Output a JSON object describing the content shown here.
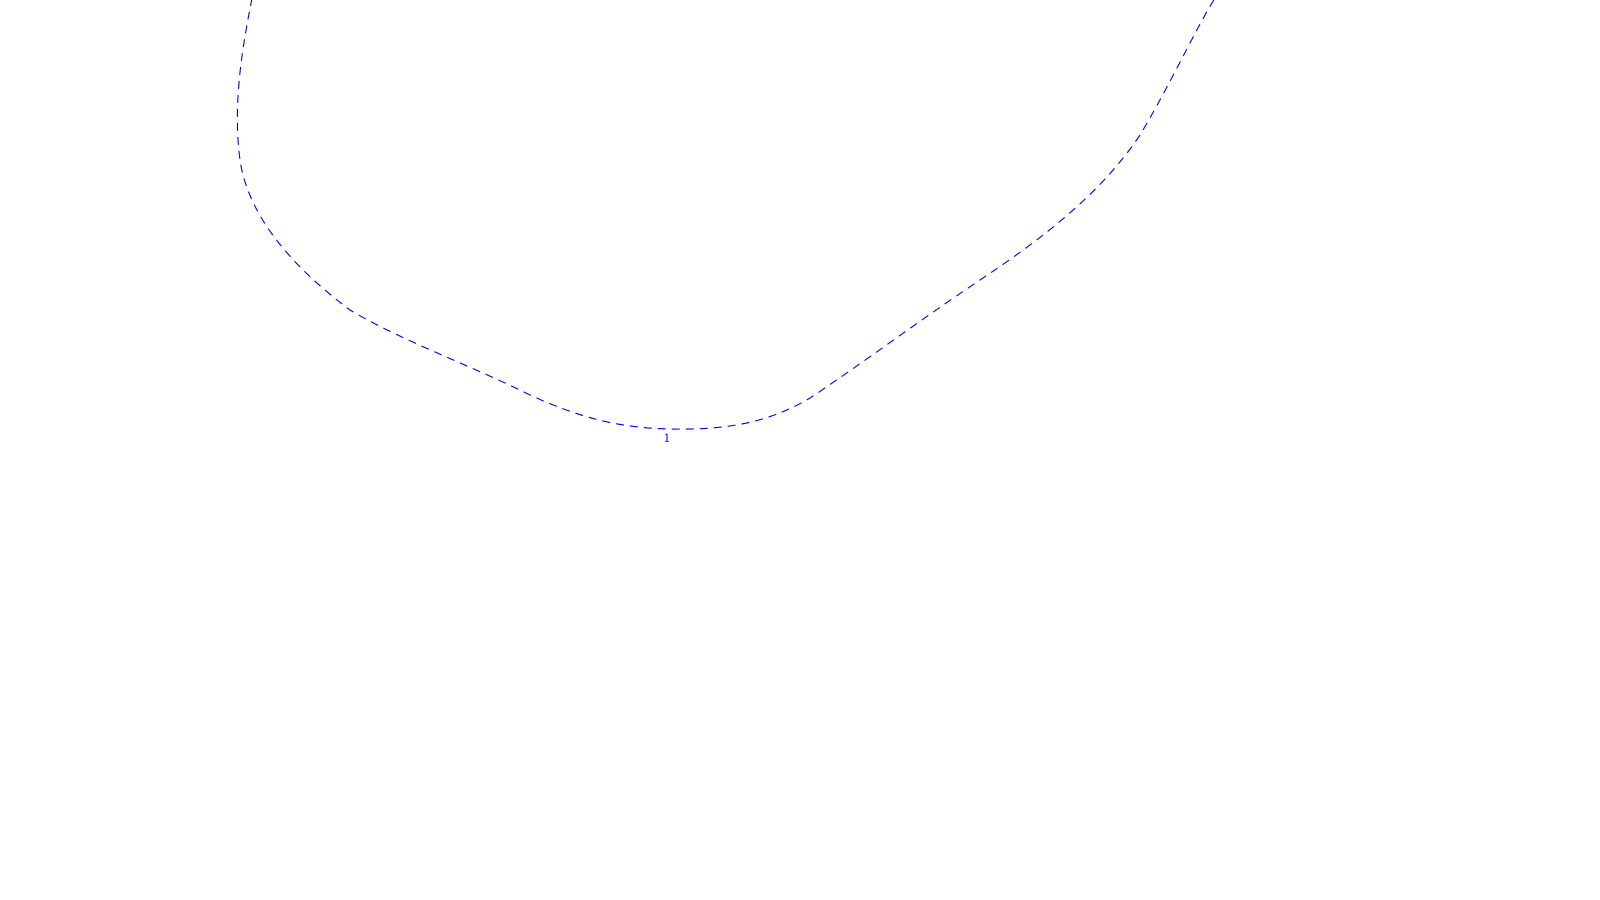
{
  "colors": {
    "background": "#ffffff",
    "contour": "#0000ff"
  },
  "contours": [
    {
      "label": "1",
      "style": "dashed"
    }
  ]
}
